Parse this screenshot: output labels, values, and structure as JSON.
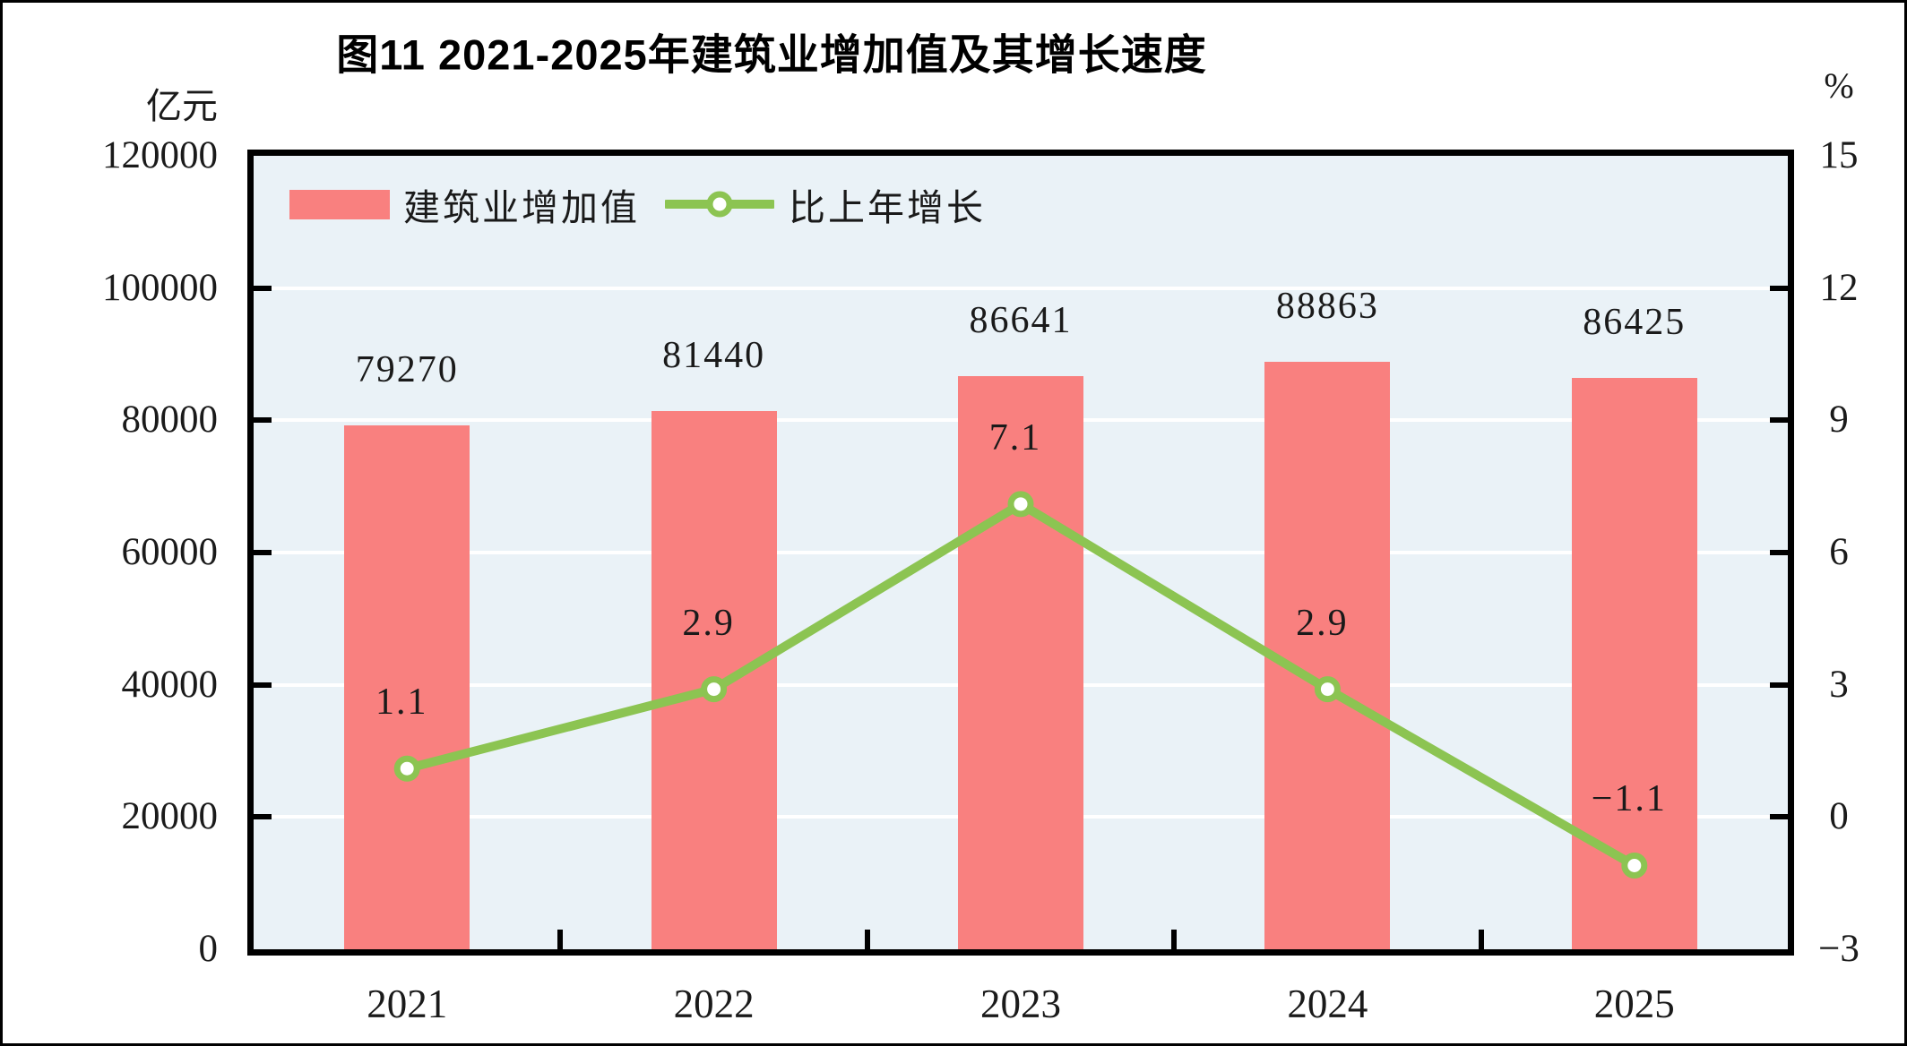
{
  "figure": {
    "title": "图11  2021-2025年建筑业增加值及其增长速度",
    "left_axis_unit": "亿元",
    "right_axis_unit": "%"
  },
  "legend": {
    "bar_label": "建筑业增加值",
    "line_label": "比上年增长"
  },
  "chart_data": {
    "type": "combo",
    "subtypes": [
      "bar",
      "line"
    ],
    "title": "图11  2021-2025年建筑业增加值及其增长速度",
    "categories": [
      "2021",
      "2022",
      "2023",
      "2024",
      "2025"
    ],
    "series": [
      {
        "name": "建筑业增加值",
        "type": "bar",
        "axis": "left",
        "unit": "亿元",
        "values": [
          79270,
          81440,
          86641,
          88863,
          86425
        ],
        "labels": [
          "79270",
          "81440",
          "86641",
          "88863",
          "86425"
        ]
      },
      {
        "name": "比上年增长",
        "type": "line",
        "axis": "right",
        "unit": "%",
        "values": [
          1.1,
          2.9,
          7.1,
          2.9,
          -1.1
        ],
        "labels": [
          "1.1",
          "2.9",
          "7.1",
          "2.9",
          "−1.1"
        ]
      }
    ],
    "left_axis": {
      "min": 0,
      "max": 120000,
      "step": 20000,
      "tick_labels": [
        "120000",
        "100000",
        "80000",
        "60000",
        "40000",
        "20000",
        "0"
      ]
    },
    "right_axis": {
      "min": -3,
      "max": 15,
      "step": 3,
      "tick_labels": [
        "15",
        "12",
        "9",
        "6",
        "3",
        "0",
        "−3"
      ]
    },
    "grid": true,
    "legend_position": "top-left-inside",
    "colors": {
      "bar": "#F9807F",
      "line": "#8CC452",
      "marker_fill": "#FFFFFF",
      "plot_background": "#EAF2F7",
      "gridline": "#FFFFFF",
      "axis": "#000000",
      "text": "#1A1A1A"
    }
  }
}
